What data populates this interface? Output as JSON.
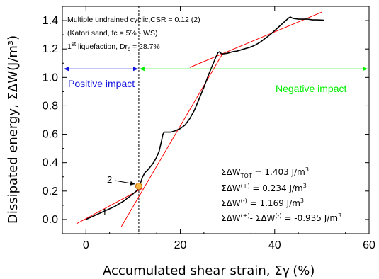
{
  "colors": {
    "curve": "#000000",
    "tangent": "#ff0000",
    "positive_impact": "#1515e0",
    "negative_impact": "#00ee00",
    "marker_fill": "#f4b942",
    "marker_stroke": "#c06000"
  },
  "chart_data": {
    "type": "line",
    "xlabel_prefix": "Accumulated shear strain, ",
    "xlabel_symbol": "Σγ",
    "xlabel_unit": "(%)",
    "ylabel": "Dissipated energy,  ΣΔW(J/m³)",
    "xlim": [
      -5,
      60
    ],
    "ylim": [
      -0.1,
      1.5
    ],
    "x_ticks": [
      "0",
      "20",
      "40",
      "60"
    ],
    "y_ticks": [
      "0.0",
      "0.2",
      "0.4",
      "0.6",
      "0.8",
      "1.0",
      "1.2",
      "1.4"
    ],
    "x_tick_values": [
      0,
      20,
      40,
      60
    ],
    "y_tick_values": [
      0.0,
      0.2,
      0.4,
      0.6,
      0.8,
      1.0,
      1.2,
      1.4
    ],
    "series": [
      {
        "x": [
          0,
          1,
          2,
          3,
          4,
          5,
          6,
          7,
          8,
          9,
          10,
          11,
          11.5,
          12,
          12.5,
          13,
          13.5,
          14,
          14.5,
          15,
          15.5,
          16,
          16.3,
          16.6,
          17,
          18,
          19,
          20,
          21,
          22,
          23,
          24,
          25,
          26,
          27,
          27.5,
          28,
          28.3,
          28.6,
          29,
          30,
          31,
          32,
          33,
          34,
          35,
          36,
          37,
          38,
          39,
          40,
          41,
          42,
          43,
          43.3,
          43.6,
          44,
          45,
          46,
          47,
          48,
          49,
          50.5
        ],
        "y": [
          0.0,
          0.015,
          0.03,
          0.045,
          0.06,
          0.075,
          0.09,
          0.11,
          0.13,
          0.155,
          0.18,
          0.21,
          0.25,
          0.3,
          0.33,
          0.345,
          0.365,
          0.385,
          0.41,
          0.44,
          0.48,
          0.55,
          0.6,
          0.615,
          0.615,
          0.615,
          0.625,
          0.64,
          0.665,
          0.71,
          0.77,
          0.85,
          0.93,
          1.02,
          1.1,
          1.14,
          1.175,
          1.18,
          1.17,
          1.165,
          1.17,
          1.18,
          1.185,
          1.195,
          1.205,
          1.215,
          1.23,
          1.25,
          1.275,
          1.3,
          1.33,
          1.36,
          1.39,
          1.42,
          1.425,
          1.42,
          1.415,
          1.41,
          1.41,
          1.41,
          1.405,
          1.405,
          1.403
        ]
      }
    ],
    "tangent_lines": [
      {
        "x": [
          -2,
          12
        ],
        "y": [
          -0.03,
          0.22
        ]
      },
      {
        "x": [
          7.5,
          29
        ],
        "y": [
          -0.05,
          1.17
        ]
      },
      {
        "x": [
          22,
          50
        ],
        "y": [
          1.07,
          1.46
        ]
      }
    ],
    "vertical_line_x": 11.2,
    "marker_point": {
      "x": 11.2,
      "y": 0.234
    },
    "marker_labels": [
      "1",
      "2"
    ]
  },
  "annotations": {
    "line1": "Multiple undrained cyclic,CSR = 0.12 (2)",
    "line2": "(Katori sand, fc = 5% - WS)",
    "line3_a": "1",
    "line3_b": "st",
    "line3_c": " liquefaction, Dr",
    "line3_d": "c",
    "line3_e": " = 28.7%"
  },
  "regions": {
    "positive": "Positive impact",
    "negative": "Negative impact"
  },
  "summary": {
    "l1_a": "ΣΔW",
    "l1_sub": "TOT",
    "l1_b": " = 1.403 J/m",
    "l1_sup": "3",
    "l2_a": "ΣΔW",
    "l2_sup1": "(+)",
    "l2_b": " =  0.234 J/m",
    "l2_sup2": "3",
    "l3_a": "ΣΔW",
    "l3_sup1": "(-)",
    "l3_b": " =  1.169 J/m",
    "l3_sup2": "3",
    "l4_a": "ΣΔW",
    "l4_sup1": "(+)",
    "l4_b": "- ΣΔW",
    "l4_sup2": "(-)",
    "l4_c": " = -0.935 J/m",
    "l4_sup3": "3"
  }
}
